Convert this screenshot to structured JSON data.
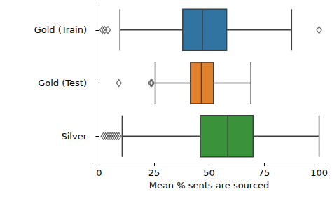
{
  "chart_data": {
    "type": "boxplot",
    "orientation": "horizontal",
    "categories": [
      "Gold (Train)",
      "Gold (Test)",
      "Silver"
    ],
    "values": [
      [
        9.5,
        38,
        47,
        58,
        87.5
      ],
      [
        25.5,
        41.5,
        46.5,
        52,
        69
      ],
      [
        10.5,
        46,
        58.5,
        70,
        100
      ]
    ],
    "outliers": [
      [
        1.5,
        2.5,
        4,
        100
      ],
      [
        9,
        23.5,
        24
      ],
      [
        2,
        3,
        4,
        5,
        6,
        7,
        8,
        9
      ]
    ],
    "colors": [
      "#3274a1",
      "#e1812c",
      "#3a923a"
    ],
    "xlabel": "Mean % sents are sourced",
    "xlim": [
      -3,
      103
    ],
    "xticks": [
      0,
      25,
      50,
      75,
      100
    ],
    "grid": false
  }
}
